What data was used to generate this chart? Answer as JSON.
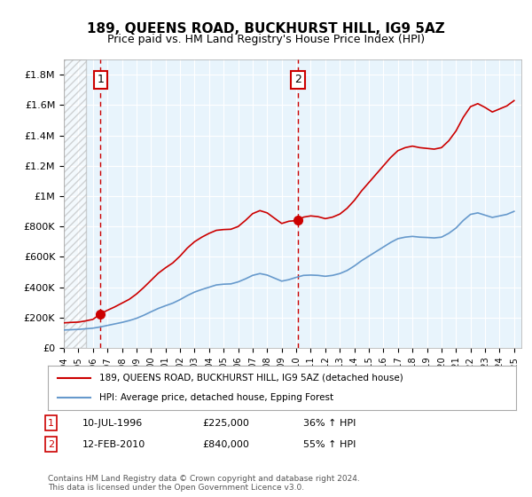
{
  "title": "189, QUEENS ROAD, BUCKHURST HILL, IG9 5AZ",
  "subtitle": "Price paid vs. HM Land Registry's House Price Index (HPI)",
  "xlabel": "",
  "ylabel": "",
  "ylim": [
    0,
    1900000
  ],
  "yticks": [
    0,
    200000,
    400000,
    600000,
    800000,
    1000000,
    1200000,
    1400000,
    1600000,
    1800000
  ],
  "ytick_labels": [
    "£0",
    "£200K",
    "£400K",
    "£600K",
    "£800K",
    "£1M",
    "£1.2M",
    "£1.4M",
    "£1.6M",
    "£1.8M"
  ],
  "xlim_start": 1994.0,
  "xlim_end": 2025.5,
  "background_color": "#e8f4fc",
  "hatch_color": "#cccccc",
  "grid_color": "#ffffff",
  "sale1_date": 1996.53,
  "sale1_price": 225000,
  "sale1_label": "1",
  "sale2_date": 2010.12,
  "sale2_price": 840000,
  "sale2_label": "2",
  "sale1_text": "10-JUL-1996    £225,000    36% ↑ HPI",
  "sale2_text": "12-FEB-2010    £840,000    55% ↑ HPI",
  "legend_line1": "189, QUEENS ROAD, BUCKHURST HILL, IG9 5AZ (detached house)",
  "legend_line2": "HPI: Average price, detached house, Epping Forest",
  "footer": "Contains HM Land Registry data © Crown copyright and database right 2024.\nThis data is licensed under the Open Government Licence v3.0.",
  "line_color_red": "#cc0000",
  "line_color_blue": "#6699cc",
  "hpi_years": [
    1994.0,
    1994.5,
    1995.0,
    1995.5,
    1996.0,
    1996.5,
    1997.0,
    1997.5,
    1998.0,
    1998.5,
    1999.0,
    1999.5,
    2000.0,
    2000.5,
    2001.0,
    2001.5,
    2002.0,
    2002.5,
    2003.0,
    2003.5,
    2004.0,
    2004.5,
    2005.0,
    2005.5,
    2006.0,
    2006.5,
    2007.0,
    2007.5,
    2008.0,
    2008.5,
    2009.0,
    2009.5,
    2010.0,
    2010.5,
    2011.0,
    2011.5,
    2012.0,
    2012.5,
    2013.0,
    2013.5,
    2014.0,
    2014.5,
    2015.0,
    2015.5,
    2016.0,
    2016.5,
    2017.0,
    2017.5,
    2018.0,
    2018.5,
    2019.0,
    2019.5,
    2020.0,
    2020.5,
    2021.0,
    2021.5,
    2022.0,
    2022.5,
    2023.0,
    2023.5,
    2024.0,
    2024.5,
    2025.0
  ],
  "hpi_values": [
    118000,
    120000,
    122000,
    126000,
    130000,
    138000,
    148000,
    158000,
    168000,
    180000,
    195000,
    215000,
    238000,
    260000,
    278000,
    295000,
    318000,
    345000,
    368000,
    385000,
    400000,
    415000,
    420000,
    422000,
    435000,
    455000,
    478000,
    490000,
    480000,
    460000,
    440000,
    450000,
    465000,
    478000,
    480000,
    478000,
    472000,
    478000,
    490000,
    510000,
    540000,
    575000,
    605000,
    635000,
    665000,
    695000,
    720000,
    730000,
    735000,
    730000,
    728000,
    725000,
    730000,
    755000,
    790000,
    840000,
    880000,
    890000,
    875000,
    860000,
    870000,
    880000,
    900000
  ],
  "price_years": [
    1994.0,
    1994.5,
    1995.0,
    1995.5,
    1996.0,
    1996.53,
    1997.0,
    1997.5,
    1998.0,
    1998.5,
    1999.0,
    1999.5,
    2000.0,
    2000.5,
    2001.0,
    2001.5,
    2002.0,
    2002.5,
    2003.0,
    2003.5,
    2004.0,
    2004.5,
    2005.0,
    2005.5,
    2006.0,
    2006.5,
    2007.0,
    2007.5,
    2008.0,
    2008.5,
    2009.0,
    2009.5,
    2010.12,
    2010.5,
    2011.0,
    2011.5,
    2012.0,
    2012.5,
    2013.0,
    2013.5,
    2014.0,
    2014.5,
    2015.0,
    2015.5,
    2016.0,
    2016.5,
    2017.0,
    2017.5,
    2018.0,
    2018.5,
    2019.0,
    2019.5,
    2020.0,
    2020.5,
    2021.0,
    2021.5,
    2022.0,
    2022.5,
    2023.0,
    2023.5,
    2024.0,
    2024.5,
    2025.0
  ],
  "price_values": [
    165000,
    168000,
    170000,
    178000,
    188000,
    225000,
    248000,
    270000,
    295000,
    320000,
    355000,
    398000,
    445000,
    492000,
    528000,
    560000,
    605000,
    658000,
    700000,
    730000,
    755000,
    775000,
    780000,
    782000,
    800000,
    840000,
    885000,
    905000,
    890000,
    855000,
    820000,
    835000,
    840000,
    862000,
    870000,
    865000,
    852000,
    862000,
    882000,
    920000,
    972000,
    1035000,
    1090000,
    1145000,
    1200000,
    1255000,
    1300000,
    1320000,
    1330000,
    1320000,
    1315000,
    1310000,
    1320000,
    1365000,
    1430000,
    1520000,
    1590000,
    1610000,
    1585000,
    1555000,
    1575000,
    1595000,
    1630000
  ]
}
